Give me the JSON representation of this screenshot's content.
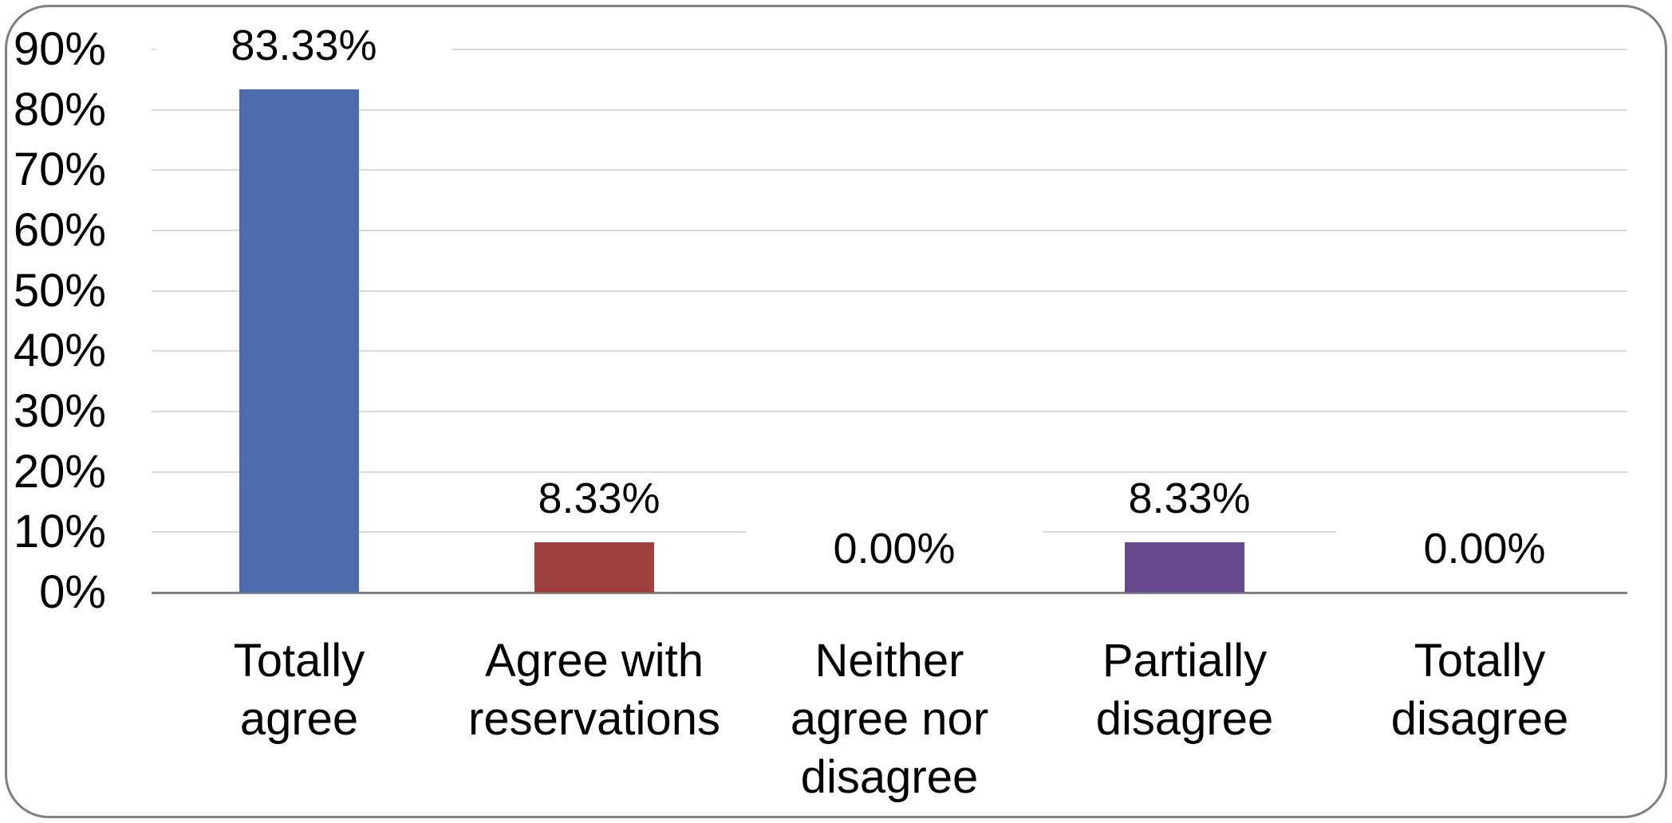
{
  "chart_data": {
    "type": "bar",
    "title": "",
    "categories": [
      "Totally agree",
      "Agree with reservations",
      "Neither agree nor disagree",
      "Partially disagree",
      "Totally disagree"
    ],
    "category_label_lines": [
      [
        "Totally",
        "agree"
      ],
      [
        "Agree with",
        "reservations"
      ],
      [
        "Neither",
        "agree nor",
        "disagree"
      ],
      [
        "Partially",
        "disagree"
      ],
      [
        "Totally",
        "disagree"
      ]
    ],
    "values": [
      83.33,
      8.33,
      0,
      8.33,
      0
    ],
    "value_labels": [
      "83.33%",
      "8.33%",
      "0.00%",
      "8.33%",
      "0.00%"
    ],
    "bar_colors": [
      "#4e6bae",
      "#9e413e",
      null,
      "#66498d",
      null
    ],
    "y_ticks": [
      "0%",
      "10%",
      "20%",
      "30%",
      "40%",
      "50%",
      "60%",
      "70%",
      "80%",
      "90%"
    ],
    "ylim": [
      0,
      90
    ],
    "y_step": 10,
    "grid": true,
    "legend": false,
    "colors": {
      "gridline": "#d9d9d9",
      "axis_line": "#808080",
      "frame_border": "#7f7f7f",
      "background": "#ffffff",
      "text": "#000000"
    }
  }
}
